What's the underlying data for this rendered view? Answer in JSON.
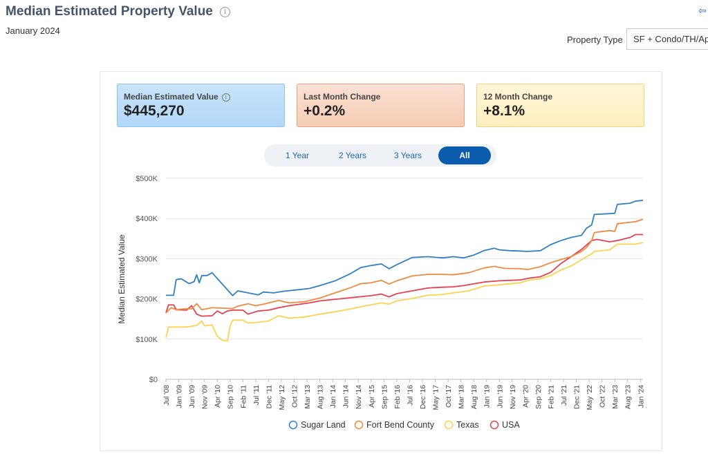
{
  "header": {
    "title": "Median Estimated Property Value",
    "subtitle": "January 2024",
    "property_type_label": "Property Type",
    "property_type_value": "SF + Condo/TH/Apt"
  },
  "cards": [
    {
      "label": "Median Estimated Value",
      "value": "$445,270"
    },
    {
      "label": "Last Month Change",
      "value": "+0.2%"
    },
    {
      "label": "12 Month Change",
      "value": "+8.1%"
    }
  ],
  "range_buttons": [
    "1 Year",
    "2 Years",
    "3 Years",
    "All"
  ],
  "active_range": "All",
  "colors": {
    "sugar_land": "#2e7fc4",
    "fort_bend": "#ef8a3f",
    "texas": "#fcd34d",
    "usa": "#e5404d"
  },
  "chart_data": {
    "type": "line",
    "title": "Median Estimated Property Value",
    "xlabel": "",
    "ylabel": "Median Estimated Value",
    "ylim": [
      0,
      500000
    ],
    "yticks": [
      "$0",
      "$100K",
      "$200K",
      "$300K",
      "$400K",
      "$500K"
    ],
    "ytick_values": [
      0,
      100000,
      200000,
      300000,
      400000,
      500000
    ],
    "xticks": [
      "Jul '08",
      "Jan '09",
      "Jun '09",
      "Nov '09",
      "Apr '10",
      "Sep '10",
      "Feb '11",
      "Jul '11",
      "Dec '11",
      "May '12",
      "Oct '12",
      "Mar '13",
      "Aug '13",
      "Jan '14",
      "Jun '14",
      "Nov '14",
      "Apr '15",
      "Sep '15",
      "Feb '16",
      "Jul '16",
      "Dec '16",
      "May '17",
      "Oct '17",
      "Mar '18",
      "Aug '18",
      "Jan '19",
      "Jun '19",
      "Nov '19",
      "Apr '20",
      "Sep '20",
      "Feb '21",
      "Jul '21",
      "Dec '21",
      "May '22",
      "Oct '22",
      "Mar '23",
      "Aug '23",
      "Jan '24"
    ],
    "start": "2008-07",
    "months": 187,
    "series": [
      {
        "name": "Sugar Land",
        "color": "#2e7fc4",
        "points": [
          [
            0,
            209000
          ],
          [
            3,
            209000
          ],
          [
            4,
            248000
          ],
          [
            6,
            250000
          ],
          [
            9,
            238000
          ],
          [
            11,
            243000
          ],
          [
            12,
            260000
          ],
          [
            13,
            240000
          ],
          [
            14,
            258000
          ],
          [
            16,
            258000
          ],
          [
            18,
            265000
          ],
          [
            26,
            208000
          ],
          [
            28,
            220000
          ],
          [
            32,
            215000
          ],
          [
            36,
            210000
          ],
          [
            38,
            217000
          ],
          [
            42,
            215000
          ],
          [
            46,
            219000
          ],
          [
            52,
            223000
          ],
          [
            56,
            226000
          ],
          [
            60,
            233000
          ],
          [
            66,
            245000
          ],
          [
            72,
            263000
          ],
          [
            76,
            278000
          ],
          [
            80,
            283000
          ],
          [
            84,
            287000
          ],
          [
            87,
            275000
          ],
          [
            90,
            285000
          ],
          [
            96,
            303000
          ],
          [
            102,
            305000
          ],
          [
            108,
            302000
          ],
          [
            112,
            305000
          ],
          [
            116,
            302000
          ],
          [
            120,
            309000
          ],
          [
            124,
            320000
          ],
          [
            128,
            326000
          ],
          [
            130,
            322000
          ],
          [
            134,
            320000
          ],
          [
            138,
            319000
          ],
          [
            141,
            318000
          ],
          [
            146,
            320000
          ],
          [
            150,
            335000
          ],
          [
            154,
            345000
          ],
          [
            158,
            353000
          ],
          [
            162,
            358000
          ],
          [
            164,
            376000
          ],
          [
            166,
            384000
          ],
          [
            167,
            410000
          ],
          [
            173,
            412000
          ],
          [
            175,
            413000
          ],
          [
            176,
            435000
          ],
          [
            181,
            438000
          ],
          [
            183,
            443000
          ],
          [
            186,
            445270
          ]
        ]
      },
      {
        "name": "Fort Bend County",
        "color": "#ef8a3f",
        "points": [
          [
            0,
            165000
          ],
          [
            2,
            178000
          ],
          [
            4,
            173000
          ],
          [
            8,
            176000
          ],
          [
            10,
            175000
          ],
          [
            12,
            188000
          ],
          [
            14,
            173000
          ],
          [
            18,
            178000
          ],
          [
            26,
            176000
          ],
          [
            28,
            182000
          ],
          [
            32,
            188000
          ],
          [
            35,
            183000
          ],
          [
            38,
            187000
          ],
          [
            44,
            196000
          ],
          [
            48,
            190000
          ],
          [
            54,
            193000
          ],
          [
            60,
            202000
          ],
          [
            66,
            215000
          ],
          [
            72,
            228000
          ],
          [
            76,
            238000
          ],
          [
            80,
            240000
          ],
          [
            84,
            246000
          ],
          [
            87,
            237000
          ],
          [
            90,
            245000
          ],
          [
            96,
            257000
          ],
          [
            102,
            261000
          ],
          [
            108,
            261000
          ],
          [
            112,
            260000
          ],
          [
            118,
            265000
          ],
          [
            124,
            277000
          ],
          [
            128,
            281000
          ],
          [
            132,
            276000
          ],
          [
            138,
            275000
          ],
          [
            141,
            273000
          ],
          [
            146,
            280000
          ],
          [
            150,
            290000
          ],
          [
            154,
            298000
          ],
          [
            158,
            305000
          ],
          [
            162,
            318000
          ],
          [
            164,
            328000
          ],
          [
            166,
            345000
          ],
          [
            167,
            365000
          ],
          [
            173,
            370000
          ],
          [
            175,
            368000
          ],
          [
            176,
            387000
          ],
          [
            183,
            392000
          ],
          [
            186,
            398000
          ]
        ]
      },
      {
        "name": "Texas",
        "color": "#fcd34d",
        "points": [
          [
            0,
            103000
          ],
          [
            1,
            130000
          ],
          [
            8,
            130000
          ],
          [
            12,
            134000
          ],
          [
            14,
            145000
          ],
          [
            15,
            133000
          ],
          [
            18,
            135000
          ],
          [
            20,
            107000
          ],
          [
            22,
            97000
          ],
          [
            24,
            95000
          ],
          [
            25,
            132000
          ],
          [
            26,
            147000
          ],
          [
            30,
            147000
          ],
          [
            32,
            140000
          ],
          [
            36,
            142000
          ],
          [
            40,
            145000
          ],
          [
            44,
            158000
          ],
          [
            48,
            152000
          ],
          [
            54,
            155000
          ],
          [
            60,
            162000
          ],
          [
            66,
            168000
          ],
          [
            72,
            175000
          ],
          [
            78,
            183000
          ],
          [
            84,
            190000
          ],
          [
            87,
            187000
          ],
          [
            90,
            195000
          ],
          [
            96,
            201000
          ],
          [
            102,
            209000
          ],
          [
            108,
            211000
          ],
          [
            112,
            215000
          ],
          [
            118,
            220000
          ],
          [
            124,
            232000
          ],
          [
            130,
            235000
          ],
          [
            138,
            240000
          ],
          [
            142,
            247000
          ],
          [
            146,
            250000
          ],
          [
            150,
            258000
          ],
          [
            154,
            272000
          ],
          [
            158,
            282000
          ],
          [
            162,
            297000
          ],
          [
            164,
            305000
          ],
          [
            166,
            312000
          ],
          [
            167,
            318000
          ],
          [
            173,
            322000
          ],
          [
            176,
            336000
          ],
          [
            183,
            336000
          ],
          [
            186,
            340000
          ]
        ]
      },
      {
        "name": "USA",
        "color": "#e5404d",
        "points": [
          [
            0,
            165000
          ],
          [
            1,
            185000
          ],
          [
            3,
            185000
          ],
          [
            4,
            173000
          ],
          [
            8,
            172000
          ],
          [
            10,
            183000
          ],
          [
            12,
            162000
          ],
          [
            14,
            157000
          ],
          [
            18,
            158000
          ],
          [
            20,
            170000
          ],
          [
            22,
            163000
          ],
          [
            24,
            170000
          ],
          [
            26,
            172000
          ],
          [
            30,
            172000
          ],
          [
            32,
            162000
          ],
          [
            36,
            170000
          ],
          [
            40,
            172000
          ],
          [
            44,
            178000
          ],
          [
            48,
            183000
          ],
          [
            56,
            190000
          ],
          [
            60,
            195000
          ],
          [
            72,
            203000
          ],
          [
            80,
            208000
          ],
          [
            84,
            212000
          ],
          [
            87,
            205000
          ],
          [
            90,
            213000
          ],
          [
            96,
            220000
          ],
          [
            102,
            227000
          ],
          [
            108,
            229000
          ],
          [
            112,
            230000
          ],
          [
            116,
            233000
          ],
          [
            124,
            242000
          ],
          [
            130,
            245000
          ],
          [
            138,
            247000
          ],
          [
            142,
            252000
          ],
          [
            146,
            255000
          ],
          [
            150,
            266000
          ],
          [
            154,
            288000
          ],
          [
            158,
            305000
          ],
          [
            162,
            323000
          ],
          [
            164,
            334000
          ],
          [
            166,
            345000
          ],
          [
            168,
            348000
          ],
          [
            173,
            342000
          ],
          [
            176,
            345000
          ],
          [
            181,
            353000
          ],
          [
            183,
            360000
          ],
          [
            186,
            360000
          ]
        ]
      }
    ],
    "legend": [
      "Sugar Land",
      "Fort Bend County",
      "Texas",
      "USA"
    ],
    "legend_position": "bottom"
  }
}
